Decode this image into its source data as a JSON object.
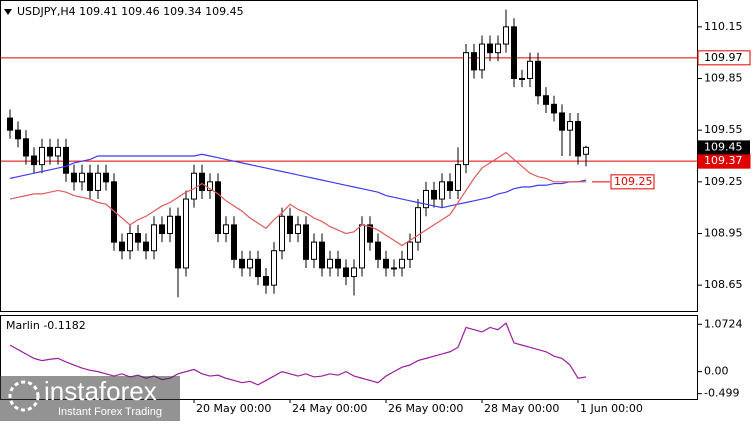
{
  "chart_data": {
    "type": "candlestick",
    "title": "USDJPY,H4  109.41 109.46 109.34 109.45",
    "categories": [
      null,
      null,
      null,
      null,
      null,
      null,
      null,
      null,
      null,
      null,
      null,
      null,
      null,
      null,
      null,
      null,
      null,
      null,
      null,
      null,
      null,
      null,
      null,
      "20 May 00:00",
      null,
      null,
      null,
      null,
      null,
      null,
      null,
      null,
      null,
      null,
      null,
      "24 May 00:00",
      null,
      null,
      null,
      null,
      null,
      null,
      null,
      null,
      null,
      null,
      null,
      "26 May 00:00",
      null,
      null,
      null,
      null,
      null,
      null,
      null,
      null,
      null,
      null,
      null,
      "28 May 00:00",
      null,
      null,
      null,
      null,
      null,
      null,
      null,
      null,
      null,
      null,
      null,
      "1 Jun 00:00",
      null
    ],
    "open": [
      109.62,
      109.55,
      109.5,
      109.4,
      109.35,
      109.45,
      109.4,
      109.45,
      109.3,
      109.25,
      109.3,
      109.2,
      109.3,
      109.25,
      108.9,
      108.85,
      108.95,
      108.9,
      108.85,
      109.0,
      108.95,
      109.05,
      108.75,
      109.15,
      109.3,
      109.2,
      109.25,
      108.95,
      109.0,
      108.8,
      108.75,
      108.8,
      108.7,
      108.65,
      108.85,
      109.05,
      108.95,
      109.0,
      108.8,
      108.9,
      108.75,
      108.8,
      108.75,
      108.7,
      108.75,
      109.0,
      108.9,
      108.8,
      108.75,
      108.75,
      108.8,
      108.9,
      109.1,
      109.2,
      109.15,
      109.25,
      109.2,
      109.35,
      110.0,
      109.9,
      110.05,
      110.0,
      110.05,
      110.15,
      109.85,
      109.85,
      109.95,
      109.75,
      109.7,
      109.65,
      109.55,
      109.6,
      109.41
    ],
    "high": [
      109.67,
      109.6,
      109.55,
      109.45,
      109.5,
      109.5,
      109.5,
      109.5,
      109.35,
      109.35,
      109.35,
      109.35,
      109.35,
      109.3,
      108.95,
      109.0,
      109.0,
      108.95,
      109.05,
      109.05,
      109.1,
      109.1,
      109.2,
      109.35,
      109.35,
      109.3,
      109.3,
      109.05,
      109.05,
      108.85,
      108.85,
      108.85,
      108.75,
      108.9,
      109.1,
      109.1,
      109.05,
      109.05,
      108.95,
      108.95,
      108.85,
      108.85,
      108.8,
      108.8,
      109.05,
      109.05,
      108.95,
      108.85,
      108.8,
      108.85,
      108.95,
      109.15,
      109.25,
      109.25,
      109.3,
      109.3,
      109.45,
      110.05,
      110.05,
      110.1,
      110.1,
      110.1,
      110.25,
      110.2,
      109.9,
      110.0,
      110.0,
      109.8,
      109.75,
      109.7,
      109.65,
      109.65,
      109.46
    ],
    "low": [
      109.5,
      109.45,
      109.35,
      109.3,
      109.3,
      109.35,
      109.35,
      109.25,
      109.2,
      109.2,
      109.15,
      109.15,
      109.2,
      108.85,
      108.8,
      108.8,
      108.85,
      108.8,
      108.8,
      108.9,
      108.9,
      108.58,
      108.7,
      109.1,
      109.15,
      109.15,
      108.9,
      108.9,
      108.75,
      108.7,
      108.7,
      108.65,
      108.6,
      108.6,
      108.8,
      108.9,
      108.9,
      108.75,
      108.75,
      108.7,
      108.7,
      108.7,
      108.65,
      108.59,
      108.7,
      108.85,
      108.75,
      108.7,
      108.7,
      108.7,
      108.75,
      108.85,
      109.05,
      109.1,
      109.1,
      109.15,
      109.15,
      109.3,
      109.85,
      109.85,
      109.95,
      109.95,
      110.0,
      109.8,
      109.8,
      109.8,
      109.7,
      109.65,
      109.6,
      109.4,
      109.4,
      109.35,
      109.34
    ],
    "close": [
      109.55,
      109.5,
      109.4,
      109.35,
      109.45,
      109.4,
      109.45,
      109.3,
      109.25,
      109.3,
      109.2,
      109.3,
      109.25,
      108.9,
      108.85,
      108.95,
      108.9,
      108.85,
      109.0,
      108.95,
      109.05,
      108.75,
      109.15,
      109.3,
      109.2,
      109.25,
      108.95,
      109.0,
      108.8,
      108.75,
      108.8,
      108.7,
      108.65,
      108.85,
      109.05,
      108.95,
      109.0,
      108.8,
      108.9,
      108.75,
      108.8,
      108.75,
      108.7,
      108.75,
      109.0,
      108.9,
      108.8,
      108.75,
      108.75,
      108.8,
      108.9,
      109.1,
      109.2,
      109.15,
      109.25,
      109.2,
      109.35,
      110.0,
      109.9,
      110.05,
      110.0,
      110.05,
      110.15,
      109.85,
      109.85,
      109.95,
      109.75,
      109.7,
      109.65,
      109.55,
      109.6,
      109.4,
      109.45
    ],
    "series": [
      {
        "color": "#3c3cf0",
        "values": [
          109.27,
          109.28,
          109.29,
          109.3,
          109.31,
          109.32,
          109.33,
          109.34,
          109.36,
          109.37,
          109.38,
          109.4,
          109.4,
          109.4,
          109.4,
          109.4,
          109.4,
          109.4,
          109.4,
          109.4,
          109.4,
          109.4,
          109.4,
          109.4,
          109.41,
          109.4,
          109.39,
          109.38,
          109.37,
          109.36,
          109.35,
          109.34,
          109.33,
          109.32,
          109.31,
          109.3,
          109.29,
          109.28,
          109.27,
          109.26,
          109.25,
          109.24,
          109.23,
          109.22,
          109.21,
          109.2,
          109.19,
          109.17,
          109.16,
          109.15,
          109.14,
          109.13,
          109.12,
          109.11,
          109.1,
          109.11,
          109.12,
          109.13,
          109.14,
          109.15,
          109.16,
          109.18,
          109.19,
          109.21,
          109.22,
          109.22,
          109.23,
          109.23,
          109.24,
          109.24,
          109.25,
          109.25,
          109.26
        ]
      },
      {
        "color": "#e05a5a",
        "values": [
          109.15,
          109.16,
          109.17,
          109.18,
          109.18,
          109.19,
          109.2,
          109.19,
          109.17,
          109.16,
          109.15,
          109.13,
          109.12,
          109.08,
          109.04,
          109.0,
          109.03,
          109.05,
          109.08,
          109.11,
          109.13,
          109.16,
          109.19,
          109.21,
          109.24,
          109.21,
          109.18,
          109.14,
          109.11,
          109.08,
          109.04,
          109.01,
          108.98,
          109.03,
          109.07,
          109.12,
          109.09,
          109.07,
          109.04,
          109.02,
          108.99,
          108.97,
          108.95,
          108.96,
          109.0,
          108.99,
          108.97,
          108.94,
          108.91,
          108.88,
          108.91,
          108.94,
          108.97,
          109.0,
          109.03,
          109.06,
          109.13,
          109.2,
          109.27,
          109.33,
          109.36,
          109.39,
          109.42,
          109.38,
          109.34,
          109.3,
          109.28,
          109.27,
          109.25,
          109.25,
          109.25,
          109.25,
          109.25
        ]
      }
    ],
    "ylim": [
      108.5,
      110.3
    ],
    "yticks": [
      110.15,
      109.85,
      109.55,
      109.25,
      108.95,
      108.65
    ],
    "levels": [
      {
        "value": 109.97,
        "color": "#e00000"
      },
      {
        "value": 109.37,
        "color": "#e00000"
      }
    ],
    "current_price": 109.45,
    "annotation": {
      "value": 109.25,
      "color": "#e00000"
    },
    "indicator": {
      "title": "Marlin -0.1182",
      "color": "#9a1ea0",
      "values": [
        0.6,
        0.5,
        0.4,
        0.3,
        0.25,
        0.28,
        0.3,
        0.22,
        0.15,
        0.08,
        0.03,
        0.0,
        -0.05,
        -0.1,
        -0.05,
        -0.12,
        -0.08,
        -0.15,
        -0.1,
        -0.18,
        -0.15,
        -0.05,
        0.0,
        0.05,
        -0.05,
        -0.1,
        -0.08,
        -0.15,
        -0.2,
        -0.25,
        -0.22,
        -0.3,
        -0.2,
        -0.1,
        0.0,
        -0.05,
        -0.1,
        -0.05,
        -0.12,
        -0.1,
        -0.05,
        -0.08,
        0.0,
        -0.1,
        -0.15,
        -0.2,
        -0.25,
        -0.1,
        0.0,
        0.1,
        0.15,
        0.25,
        0.3,
        0.35,
        0.4,
        0.45,
        0.55,
        1.0,
        0.95,
        0.9,
        1.0,
        0.95,
        1.1,
        0.65,
        0.6,
        0.55,
        0.5,
        0.45,
        0.35,
        0.3,
        0.15,
        -0.15,
        -0.12
      ],
      "ylim": [
        -0.62,
        1.26
      ],
      "yticks": [
        1.0724,
        {
          "value": 0,
          "label": "0.00"
        },
        -0.499
      ]
    },
    "watermark": {
      "brand": "instaforex",
      "tagline": "Instant Forex Trading"
    }
  }
}
